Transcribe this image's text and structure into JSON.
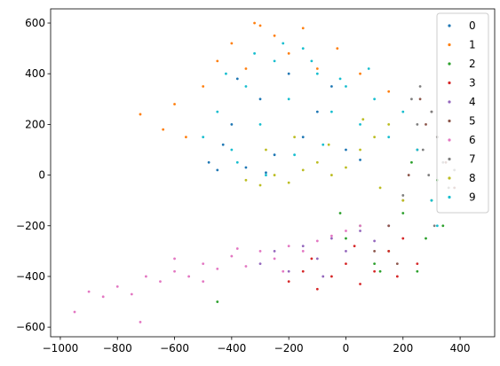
{
  "chart_data": {
    "type": "scatter",
    "xlim": [
      -1034,
      521
    ],
    "ylim": [
      -638,
      656
    ],
    "xticks": [
      {
        "value": -1000,
        "label": "−1000"
      },
      {
        "value": -800,
        "label": "−800"
      },
      {
        "value": -600,
        "label": "−600"
      },
      {
        "value": -400,
        "label": "−400"
      },
      {
        "value": -200,
        "label": "−200"
      },
      0,
      200,
      400
    ],
    "yticks": [
      {
        "value": -600,
        "label": "−600"
      },
      {
        "value": -400,
        "label": "−400"
      },
      {
        "value": -200,
        "label": "−200"
      },
      0,
      200,
      400,
      600
    ],
    "legend": "upper right",
    "series": [
      {
        "name": "0",
        "color": "#1f77b4",
        "x": [
          -480,
          -430,
          -400,
          -350,
          -300,
          -250,
          -200,
          -150,
          -100,
          -50,
          0,
          50,
          -380,
          -450,
          -280
        ],
        "y": [
          50,
          120,
          200,
          30,
          300,
          80,
          400,
          150,
          250,
          350,
          100,
          60,
          380,
          20,
          10
        ]
      },
      {
        "name": "1",
        "color": "#ff7f0e",
        "x": [
          -720,
          -640,
          -600,
          -560,
          -500,
          -450,
          -400,
          -350,
          -300,
          -250,
          -200,
          -150,
          -100,
          -30,
          50,
          150,
          -320
        ],
        "y": [
          240,
          180,
          280,
          150,
          350,
          450,
          520,
          420,
          590,
          550,
          480,
          580,
          420,
          500,
          400,
          330,
          600
        ]
      },
      {
        "name": "2",
        "color": "#2ca02c",
        "x": [
          0,
          50,
          100,
          150,
          200,
          250,
          280,
          300,
          320,
          340,
          -20,
          120,
          230,
          -450
        ],
        "y": [
          -250,
          -200,
          -350,
          -300,
          -150,
          -380,
          -250,
          -100,
          -20,
          -200,
          -150,
          -380,
          50,
          -500
        ]
      },
      {
        "name": "3",
        "color": "#d62728",
        "x": [
          -200,
          -150,
          -100,
          -50,
          0,
          50,
          100,
          150,
          200,
          250,
          -120,
          30,
          180
        ],
        "y": [
          -420,
          -380,
          -450,
          -400,
          -350,
          -430,
          -380,
          -300,
          -250,
          -350,
          -330,
          -280,
          -400
        ]
      },
      {
        "name": "4",
        "color": "#9467bd",
        "x": [
          -300,
          -250,
          -200,
          -150,
          -100,
          -50,
          0,
          50,
          100,
          150,
          -80
        ],
        "y": [
          -350,
          -300,
          -380,
          -280,
          -330,
          -250,
          -300,
          -220,
          -260,
          -200,
          -400
        ]
      },
      {
        "name": "5",
        "color": "#8c564b",
        "x": [
          100,
          150,
          200,
          220,
          250,
          280,
          300,
          320,
          350,
          380,
          260,
          180
        ],
        "y": [
          -300,
          -200,
          -100,
          0,
          100,
          200,
          250,
          150,
          50,
          -50,
          300,
          -350
        ]
      },
      {
        "name": "6",
        "color": "#e377c2",
        "x": [
          -950,
          -900,
          -850,
          -800,
          -750,
          -720,
          -700,
          -650,
          -600,
          -550,
          -500,
          -450,
          -400,
          -350,
          -300,
          -250,
          -200,
          -150,
          -100,
          -50,
          0,
          50,
          -600,
          -500,
          -380,
          -220
        ],
        "y": [
          -540,
          -460,
          -480,
          -440,
          -470,
          -580,
          -400,
          -420,
          -380,
          -400,
          -350,
          -370,
          -320,
          -360,
          -300,
          -330,
          -280,
          -300,
          -260,
          -240,
          -220,
          -200,
          -330,
          -420,
          -290,
          -380
        ]
      },
      {
        "name": "7",
        "color": "#7f7f7f",
        "x": [
          200,
          230,
          250,
          270,
          290,
          300,
          320,
          340,
          360,
          380,
          260,
          310
        ],
        "y": [
          -80,
          300,
          200,
          100,
          0,
          250,
          150,
          50,
          -50,
          20,
          350,
          -200
        ]
      },
      {
        "name": "8",
        "color": "#bcbd22",
        "x": [
          -350,
          -300,
          -250,
          -200,
          -150,
          -100,
          -50,
          0,
          50,
          100,
          150,
          -280,
          -180,
          -60,
          60,
          120,
          200
        ],
        "y": [
          -20,
          -40,
          0,
          -30,
          20,
          50,
          0,
          30,
          100,
          150,
          200,
          100,
          150,
          120,
          220,
          -50,
          -100
        ]
      },
      {
        "name": "9",
        "color": "#17becf",
        "x": [
          -500,
          -450,
          -400,
          -350,
          -300,
          -250,
          -200,
          -150,
          -100,
          -50,
          0,
          50,
          100,
          150,
          200,
          250,
          300,
          320,
          -420,
          -320,
          -220,
          -120,
          -20,
          80,
          -380,
          -280,
          -180,
          -80
        ],
        "y": [
          150,
          250,
          100,
          350,
          200,
          450,
          300,
          500,
          400,
          250,
          350,
          200,
          300,
          150,
          250,
          100,
          -100,
          -200,
          400,
          480,
          520,
          450,
          380,
          420,
          50,
          0,
          80,
          120
        ]
      }
    ]
  }
}
